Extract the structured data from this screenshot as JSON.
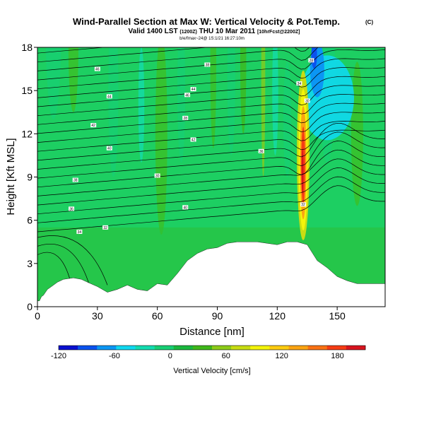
{
  "chart_data": {
    "type": "heatmap",
    "title": "Wind-Parallel Section at Max W: Vertical Velocity & Pot.Temp.",
    "title_mark": "(C)",
    "subtitle_main": "Valid 1400 LST",
    "subtitle_sub1": "(1200Z)",
    "subtitle_mid": "THU 10 Mar 2011",
    "subtitle_sub2": "[10hrFcst@2200Z]",
    "subtitle_small": "b/e/fmax~24@ 1S:1/21 16:27:10m",
    "xlabel": "Distance [nm]",
    "ylabel": "Height [Kft MSL]",
    "xlim": [
      0,
      174
    ],
    "ylim": [
      0,
      18
    ],
    "x_ticks": [
      "0",
      "30",
      "60",
      "90",
      "120",
      "150"
    ],
    "x_tick_values": [
      0,
      30,
      60,
      90,
      120,
      150
    ],
    "y_ticks": [
      "0",
      "3",
      "6",
      "9",
      "12",
      "15",
      "18"
    ],
    "y_tick_values": [
      0,
      3,
      6,
      9,
      12,
      15,
      18
    ],
    "colorbar": {
      "label": "Vertical Velocity [cm/s]",
      "ticks": [
        "-120",
        "-60",
        "0",
        "60",
        "120",
        "180"
      ],
      "tick_values": [
        -120,
        -60,
        0,
        60,
        120,
        180
      ],
      "range": [
        -120,
        210
      ],
      "colors": [
        "#0a10d0",
        "#0a52ee",
        "#0b96f4",
        "#10d8f0",
        "#13dcb0",
        "#17cf74",
        "#1ab83e",
        "#3fb81a",
        "#8dcc18",
        "#c8dd12",
        "#f4f40a",
        "#fdcc10",
        "#fba412",
        "#fa7214",
        "#f63c14",
        "#d8141e"
      ]
    },
    "terrain_profile": {
      "x": [
        0,
        1,
        2,
        3,
        4,
        5,
        7,
        10,
        13,
        18,
        22,
        25,
        30,
        35,
        40,
        45,
        50,
        55,
        60,
        65,
        70,
        75,
        80,
        85,
        90,
        95,
        100,
        110,
        120,
        125,
        128,
        130,
        135,
        140,
        145,
        150,
        155,
        160,
        165,
        170,
        174
      ],
      "y": [
        0.4,
        0.4,
        0.7,
        0.8,
        1.0,
        1.2,
        1.4,
        1.7,
        1.9,
        2.0,
        1.9,
        1.7,
        1.4,
        1.0,
        1.2,
        1.5,
        1.2,
        1.1,
        1.6,
        1.5,
        2.3,
        3.2,
        3.7,
        4.0,
        4.1,
        4.4,
        4.5,
        4.5,
        4.3,
        4.5,
        4.5,
        4.5,
        4.3,
        3.2,
        2.7,
        2.1,
        1.8,
        1.6,
        1.6,
        1.6,
        1.6
      ]
    },
    "updraft_core": {
      "x": 133,
      "y_bottom": 6.5,
      "y_top": 15.5,
      "peak_value": 200
    },
    "downdraft_core": {
      "x": 141,
      "y_bottom": 12,
      "y_top": 18,
      "min_value": -120
    },
    "isentrope_labels": [
      "46",
      "44",
      "42",
      "40",
      "38",
      "36",
      "34",
      "32",
      "30",
      "28"
    ]
  }
}
